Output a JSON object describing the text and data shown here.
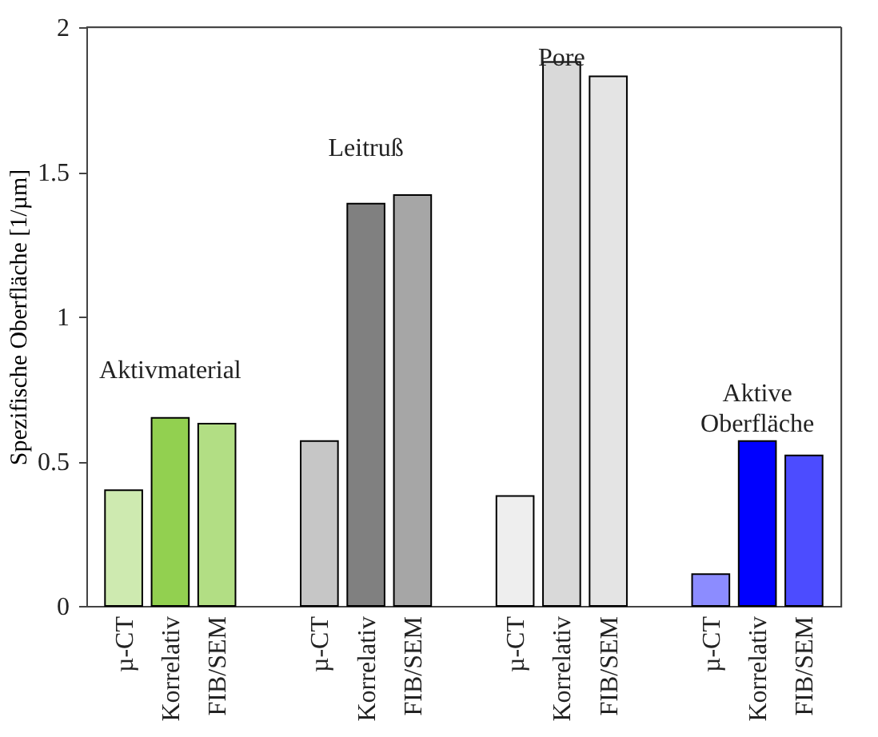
{
  "chart_data": {
    "type": "bar",
    "ylabel": "Spezifische Oberfläche [1/µm]",
    "categories": [
      "µ-CT",
      "Korrelativ",
      "FIB/SEM",
      "µ-CT",
      "Korrelativ",
      "FIB/SEM",
      "µ-CT",
      "Korrelativ",
      "FIB/SEM",
      "µ-CT",
      "Korrelativ",
      "FIB/SEM"
    ],
    "values": [
      0.4,
      0.65,
      0.63,
      0.57,
      1.39,
      1.42,
      0.38,
      1.88,
      1.83,
      0.11,
      0.57,
      0.52
    ],
    "colors": [
      "#92d050",
      "#92d050",
      "#92d050",
      "#808080",
      "#808080",
      "#808080",
      "#d9d9d9",
      "#d9d9d9",
      "#d9d9d9",
      "#0000ff",
      "#0000ff",
      "#0000ff"
    ],
    "annotations": [
      "Aktivmaterial",
      "Leitruß",
      "Pore",
      "Aktive\nOberfläche"
    ],
    "ylim": [
      0,
      2
    ],
    "yticks": [
      0,
      0.5,
      1,
      1.5,
      2
    ]
  }
}
